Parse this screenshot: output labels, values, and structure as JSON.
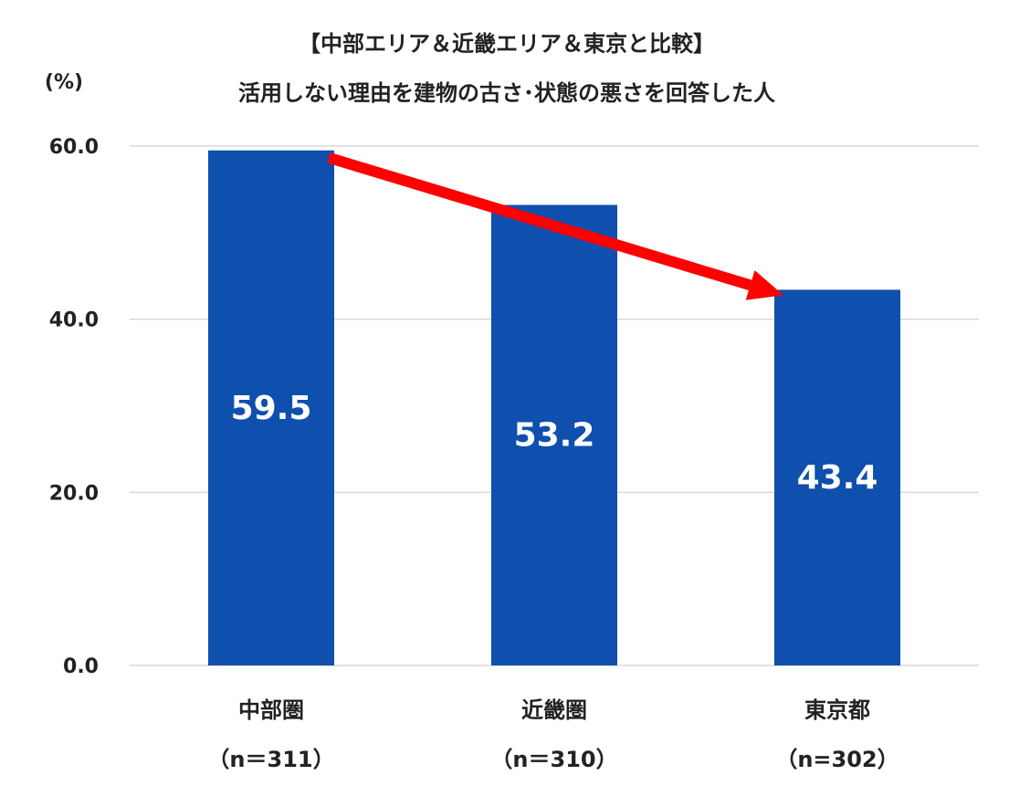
{
  "chart_data": {
    "type": "bar",
    "title": "【中部エリア＆近畿エリア＆東京と比較】",
    "subtitle": "活用しない理由を建物の古さ･状態の悪さを回答した人",
    "ylabel": "(%)",
    "ylim": [
      0,
      60
    ],
    "yticks": [
      "0.0",
      "20.0",
      "40.0",
      "60.0"
    ],
    "categories": [
      {
        "name": "中部圏",
        "n": "（n＝311）"
      },
      {
        "name": "近畿圏",
        "n": "（n＝310）"
      },
      {
        "name": "東京都",
        "n": "（n=302）"
      }
    ],
    "values": [
      59.5,
      53.2,
      43.4
    ],
    "value_labels": [
      "59.5",
      "53.2",
      "43.4"
    ],
    "bar_color": "#0f4fad",
    "arrow_color": "#ff0000",
    "grid": true,
    "legend": "none"
  }
}
